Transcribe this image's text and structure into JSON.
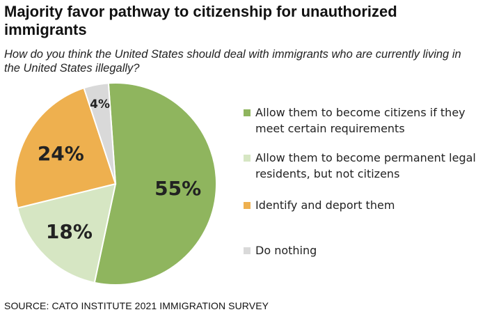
{
  "title": "Majority favor pathway to citizenship for unauthorized immigrants",
  "subtitle": "How do you think the United States should deal with immigrants who are currently living in the United States illegally?",
  "source": "SOURCE: CATO INSTITUTE 2021 IMMIGRATION SURVEY",
  "colors": {
    "citizens": "#8fb55e",
    "permanent": "#d6e6c3",
    "deport": "#eeb04f",
    "nothing": "#d9d9d9"
  },
  "chart_data": {
    "type": "pie",
    "title": "Majority favor pathway to citizenship for unauthorized immigrants",
    "legend_placement": "right",
    "slices": [
      {
        "key": "citizens",
        "label": "Allow them to become citizens if they meet certain requirements",
        "value": 55,
        "display": "55%"
      },
      {
        "key": "permanent",
        "label": "Allow them to become permanent legal residents, but not citizens",
        "value": 18,
        "display": "18%"
      },
      {
        "key": "deport",
        "label": "Identify and deport them",
        "value": 24,
        "display": "24%"
      },
      {
        "key": "nothing",
        "label": "Do nothing",
        "value": 4,
        "display": "4%"
      }
    ]
  }
}
